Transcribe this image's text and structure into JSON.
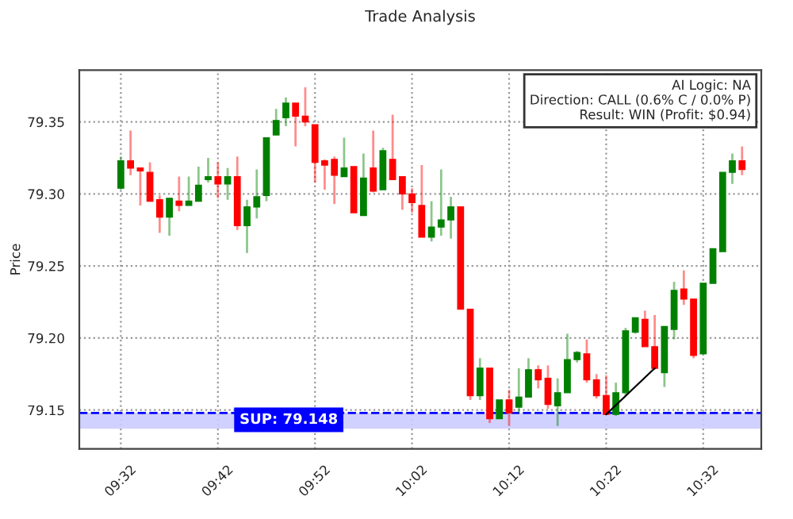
{
  "chart_data": {
    "type": "candlestick",
    "title": "Trade Analysis",
    "ylabel": "Price",
    "x": [
      9.5333,
      9.55,
      9.5667,
      9.5833,
      9.6,
      9.6167,
      9.6333,
      9.65,
      9.6667,
      9.6833,
      9.7,
      9.7167,
      9.7333,
      9.75,
      9.7667,
      9.7833,
      9.8,
      9.8167,
      9.8333,
      9.85,
      9.8667,
      9.8833,
      9.9,
      9.9167,
      9.9333,
      9.95,
      9.9667,
      9.9833,
      10.0,
      10.0167,
      10.0333,
      10.05,
      10.0667,
      10.0833,
      10.1,
      10.1167,
      10.1333,
      10.15,
      10.1667,
      10.1833,
      10.2,
      10.2167,
      10.2333,
      10.25,
      10.2667,
      10.2833,
      10.3,
      10.3167,
      10.3333,
      10.35,
      10.3667,
      10.3833,
      10.4,
      10.4167,
      10.4333,
      10.45,
      10.4667,
      10.4833,
      10.5,
      10.5167,
      10.5333,
      10.55,
      10.5667,
      10.5833,
      10.6
    ],
    "ohlc": [
      [
        79.304,
        79.326,
        79.303,
        79.323
      ],
      [
        79.323,
        79.344,
        79.313,
        79.318
      ],
      [
        79.318,
        79.318,
        79.292,
        79.316
      ],
      [
        79.315,
        79.322,
        79.295,
        79.295
      ],
      [
        79.296,
        79.299,
        79.273,
        79.284
      ],
      [
        79.284,
        79.297,
        79.271,
        79.297
      ],
      [
        79.295,
        79.312,
        79.288,
        79.292
      ],
      [
        79.292,
        79.312,
        79.292,
        79.295
      ],
      [
        79.295,
        79.319,
        79.295,
        79.306
      ],
      [
        79.31,
        79.325,
        79.308,
        79.312
      ],
      [
        79.312,
        79.322,
        79.297,
        79.307
      ],
      [
        79.307,
        79.318,
        79.296,
        79.312
      ],
      [
        79.312,
        79.326,
        79.275,
        79.278
      ],
      [
        79.278,
        79.296,
        79.259,
        79.291
      ],
      [
        79.291,
        79.317,
        79.283,
        79.298
      ],
      [
        79.299,
        79.339,
        79.295,
        79.339
      ],
      [
        79.341,
        79.359,
        79.341,
        79.351
      ],
      [
        79.353,
        79.367,
        79.347,
        79.363
      ],
      [
        79.363,
        79.363,
        79.333,
        79.354
      ],
      [
        79.354,
        79.374,
        79.347,
        79.35
      ],
      [
        79.348,
        79.348,
        79.308,
        79.322
      ],
      [
        79.323,
        79.324,
        79.303,
        79.32
      ],
      [
        79.324,
        79.326,
        79.293,
        79.313
      ],
      [
        79.312,
        79.339,
        79.312,
        79.318
      ],
      [
        79.319,
        79.319,
        79.287,
        79.287
      ],
      [
        79.285,
        79.328,
        79.285,
        79.311
      ],
      [
        79.318,
        79.344,
        79.301,
        79.302
      ],
      [
        79.303,
        79.332,
        79.303,
        79.33
      ],
      [
        79.324,
        79.355,
        79.31,
        79.31
      ],
      [
        79.312,
        79.312,
        79.289,
        79.3
      ],
      [
        79.3,
        79.304,
        79.287,
        79.294
      ],
      [
        79.292,
        79.32,
        79.27,
        79.27
      ],
      [
        79.27,
        79.295,
        79.267,
        79.277
      ],
      [
        79.277,
        79.317,
        79.271,
        79.282
      ],
      [
        79.282,
        79.298,
        79.269,
        79.291
      ],
      [
        79.291,
        79.291,
        79.22,
        79.22
      ],
      [
        79.22,
        79.22,
        79.157,
        79.16
      ],
      [
        79.16,
        79.186,
        79.157,
        79.179
      ],
      [
        79.179,
        79.179,
        79.141,
        79.144
      ],
      [
        79.144,
        79.157,
        79.144,
        79.157
      ],
      [
        79.157,
        79.164,
        79.139,
        79.148
      ],
      [
        79.152,
        79.179,
        79.148,
        79.159
      ],
      [
        79.159,
        79.186,
        79.159,
        79.178
      ],
      [
        79.178,
        79.181,
        79.165,
        79.171
      ],
      [
        79.172,
        79.181,
        79.151,
        79.154
      ],
      [
        79.153,
        79.172,
        79.139,
        79.162
      ],
      [
        79.162,
        79.203,
        79.162,
        79.185
      ],
      [
        79.185,
        79.191,
        79.183,
        79.19
      ],
      [
        79.189,
        79.199,
        79.169,
        79.171
      ],
      [
        79.171,
        79.175,
        79.158,
        79.16
      ],
      [
        79.16,
        79.174,
        79.147,
        79.147
      ],
      [
        79.147,
        79.169,
        79.146,
        79.162
      ],
      [
        79.162,
        79.207,
        79.16,
        79.205
      ],
      [
        79.204,
        79.214,
        79.203,
        79.214
      ],
      [
        79.213,
        79.219,
        79.194,
        79.194
      ],
      [
        79.194,
        79.216,
        79.178,
        79.179
      ],
      [
        79.176,
        79.208,
        79.166,
        79.208
      ],
      [
        79.206,
        79.239,
        79.199,
        79.233
      ],
      [
        79.234,
        79.247,
        79.223,
        79.227
      ],
      [
        79.227,
        79.227,
        79.186,
        79.188
      ],
      [
        79.189,
        79.238,
        79.189,
        79.238
      ],
      [
        79.238,
        79.262,
        79.238,
        79.262
      ],
      [
        79.26,
        79.315,
        79.26,
        79.315
      ],
      [
        79.315,
        79.328,
        79.307,
        79.323
      ],
      [
        79.323,
        79.333,
        79.313,
        79.317
      ]
    ],
    "colors": [
      "#008000",
      "#ff0000",
      "#ff0000",
      "#ff0000",
      "#ff0000",
      "#008000",
      "#ff0000",
      "#008000",
      "#008000",
      "#008000",
      "#ff0000",
      "#008000",
      "#ff0000",
      "#008000",
      "#008000",
      "#008000",
      "#008000",
      "#008000",
      "#ff0000",
      "#ff0000",
      "#ff0000",
      "#ff0000",
      "#ff0000",
      "#008000",
      "#ff0000",
      "#008000",
      "#ff0000",
      "#008000",
      "#ff0000",
      "#ff0000",
      "#ff0000",
      "#ff0000",
      "#008000",
      "#008000",
      "#008000",
      "#ff0000",
      "#ff0000",
      "#008000",
      "#ff0000",
      "#008000",
      "#ff0000",
      "#008000",
      "#008000",
      "#ff0000",
      "#ff0000",
      "#008000",
      "#008000",
      "#008000",
      "#ff0000",
      "#ff0000",
      "#ff0000",
      "#008000",
      "#008000",
      "#008000",
      "#ff0000",
      "#ff0000",
      "#008000",
      "#008000",
      "#ff0000",
      "#ff0000",
      "#008000",
      "#008000",
      "#008000",
      "#008000",
      "#ff0000"
    ],
    "series": [
      {
        "type": "line",
        "x": [
          10.3667,
          10.45
        ],
        "values": [
          79.147,
          79.179
        ],
        "color": "#000000"
      }
    ],
    "ref_lines": [
      {
        "axis": "y",
        "value": 79.148,
        "label": "SUP: 79.148",
        "color": "#0000ff",
        "line_style": "dashed"
      }
    ],
    "bands": [
      {
        "axis": "y",
        "from": 79.137,
        "to": 79.148,
        "color": "#ccccff"
      }
    ],
    "annotations": [
      "AI Logic: NA\nDirection: CALL (0.6% C / 0.0% P)\nResult: WIN (Profit: $0.94)"
    ],
    "xlim": [
      9.462,
      10.633
    ],
    "ylim": [
      79.123,
      79.386
    ],
    "xticks": [
      {
        "value": 9.5333,
        "label": "09:32"
      },
      {
        "value": 9.7,
        "label": "09:42"
      },
      {
        "value": 9.8667,
        "label": "09:52"
      },
      {
        "value": 10.0333,
        "label": "10:02"
      },
      {
        "value": 10.2,
        "label": "10:12"
      },
      {
        "value": 10.3667,
        "label": "10:22"
      },
      {
        "value": 10.5333,
        "label": "10:32"
      }
    ],
    "yticks": [
      {
        "value": 79.15,
        "label": "79.15"
      },
      {
        "value": 79.2,
        "label": "79.20"
      },
      {
        "value": 79.25,
        "label": "79.25"
      },
      {
        "value": 79.3,
        "label": "79.30"
      },
      {
        "value": 79.35,
        "label": "79.35"
      }
    ],
    "grid": true,
    "legend": false
  }
}
